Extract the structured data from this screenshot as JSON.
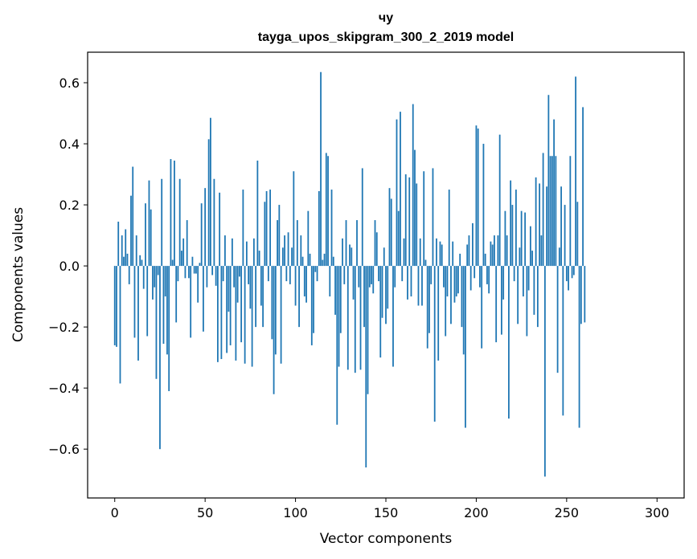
{
  "chart_data": {
    "type": "bar",
    "title": "чу",
    "subtitle": "tayga_upos_skipgram_300_2_2019 model",
    "xlabel": "Vector components",
    "ylabel": "Components values",
    "xlim": [
      -15,
      315
    ],
    "ylim": [
      -0.76,
      0.7
    ],
    "xticks": [
      0,
      50,
      100,
      150,
      200,
      250,
      300
    ],
    "yticks": [
      -0.6,
      -0.4,
      -0.2,
      0.0,
      0.2,
      0.4,
      0.6
    ],
    "ytick_labels": [
      "−0.6",
      "−0.4",
      "−0.2",
      "0.0",
      "0.2",
      "0.4",
      "0.6"
    ],
    "xtick_labels": [
      "0",
      "50",
      "100",
      "150",
      "200",
      "250",
      "300"
    ],
    "bar_color": "#1f77b4",
    "values": [
      -0.26,
      -0.265,
      0.145,
      -0.385,
      0.1,
      0.03,
      0.12,
      0.04,
      -0.06,
      0.23,
      0.325,
      -0.235,
      0.1,
      -0.31,
      0.035,
      0.02,
      -0.075,
      0.205,
      -0.23,
      0.28,
      0.185,
      -0.11,
      -0.07,
      -0.37,
      -0.03,
      -0.6,
      0.285,
      -0.255,
      -0.1,
      -0.29,
      -0.41,
      0.35,
      0.02,
      0.345,
      -0.185,
      -0.05,
      0.285,
      0.05,
      0.09,
      -0.04,
      0.15,
      -0.04,
      -0.235,
      0.03,
      -0.025,
      -0.025,
      -0.12,
      0.01,
      0.205,
      -0.215,
      0.255,
      -0.07,
      0.415,
      0.485,
      -0.03,
      0.285,
      -0.065,
      -0.315,
      0.24,
      -0.305,
      -0.05,
      0.1,
      -0.285,
      -0.15,
      -0.26,
      0.09,
      -0.07,
      -0.31,
      -0.12,
      -0.035,
      -0.25,
      0.25,
      -0.32,
      0.08,
      -0.06,
      -0.14,
      -0.33,
      0.09,
      -0.2,
      0.345,
      0.05,
      -0.13,
      -0.2,
      0.21,
      0.245,
      -0.05,
      0.25,
      -0.24,
      -0.42,
      -0.29,
      0.15,
      0.2,
      -0.32,
      0.06,
      0.1,
      -0.05,
      0.11,
      -0.06,
      0.06,
      0.31,
      -0.13,
      0.15,
      -0.2,
      0.1,
      0.03,
      -0.1,
      -0.12,
      0.18,
      0.04,
      -0.26,
      -0.22,
      -0.02,
      -0.05,
      0.245,
      0.635,
      0.02,
      0.04,
      0.37,
      0.36,
      -0.1,
      0.25,
      0.03,
      -0.16,
      -0.52,
      -0.33,
      -0.22,
      0.09,
      -0.06,
      0.15,
      -0.34,
      0.07,
      0.06,
      -0.11,
      -0.35,
      0.15,
      -0.07,
      -0.34,
      0.32,
      -0.2,
      -0.66,
      -0.42,
      -0.07,
      -0.06,
      -0.09,
      0.15,
      0.11,
      -0.05,
      -0.3,
      -0.17,
      0.06,
      -0.19,
      -0.14,
      0.255,
      0.22,
      -0.33,
      -0.07,
      0.48,
      0.18,
      0.505,
      -0.05,
      0.09,
      0.3,
      -0.11,
      0.29,
      -0.1,
      0.53,
      0.38,
      0.27,
      -0.13,
      0.09,
      -0.13,
      0.31,
      0.02,
      -0.27,
      -0.22,
      -0.06,
      0.32,
      -0.51,
      0.09,
      -0.31,
      0.08,
      0.07,
      -0.07,
      -0.23,
      -0.1,
      0.25,
      -0.19,
      0.08,
      -0.12,
      -0.1,
      -0.09,
      0.04,
      -0.2,
      -0.29,
      -0.53,
      0.07,
      0.1,
      -0.08,
      0.14,
      -0.04,
      0.46,
      0.45,
      -0.07,
      -0.27,
      0.4,
      0.04,
      -0.06,
      -0.09,
      0.08,
      0.07,
      0.1,
      -0.25,
      0.1,
      0.43,
      -0.225,
      -0.11,
      0.18,
      0.1,
      -0.5,
      0.28,
      0.2,
      -0.05,
      0.25,
      -0.19,
      0.06,
      0.18,
      -0.1,
      0.175,
      -0.23,
      -0.08,
      0.13,
      0.05,
      -0.16,
      0.29,
      -0.2,
      0.27,
      0.1,
      0.37,
      -0.69,
      0.26,
      0.56,
      0.36,
      0.36,
      0.48,
      0.36,
      -0.35,
      0.06,
      0.26,
      -0.49,
      0.2,
      -0.05,
      -0.08,
      0.36,
      -0.04,
      -0.03,
      0.62,
      0.21,
      -0.53,
      -0.19,
      0.52,
      -0.185
    ]
  }
}
